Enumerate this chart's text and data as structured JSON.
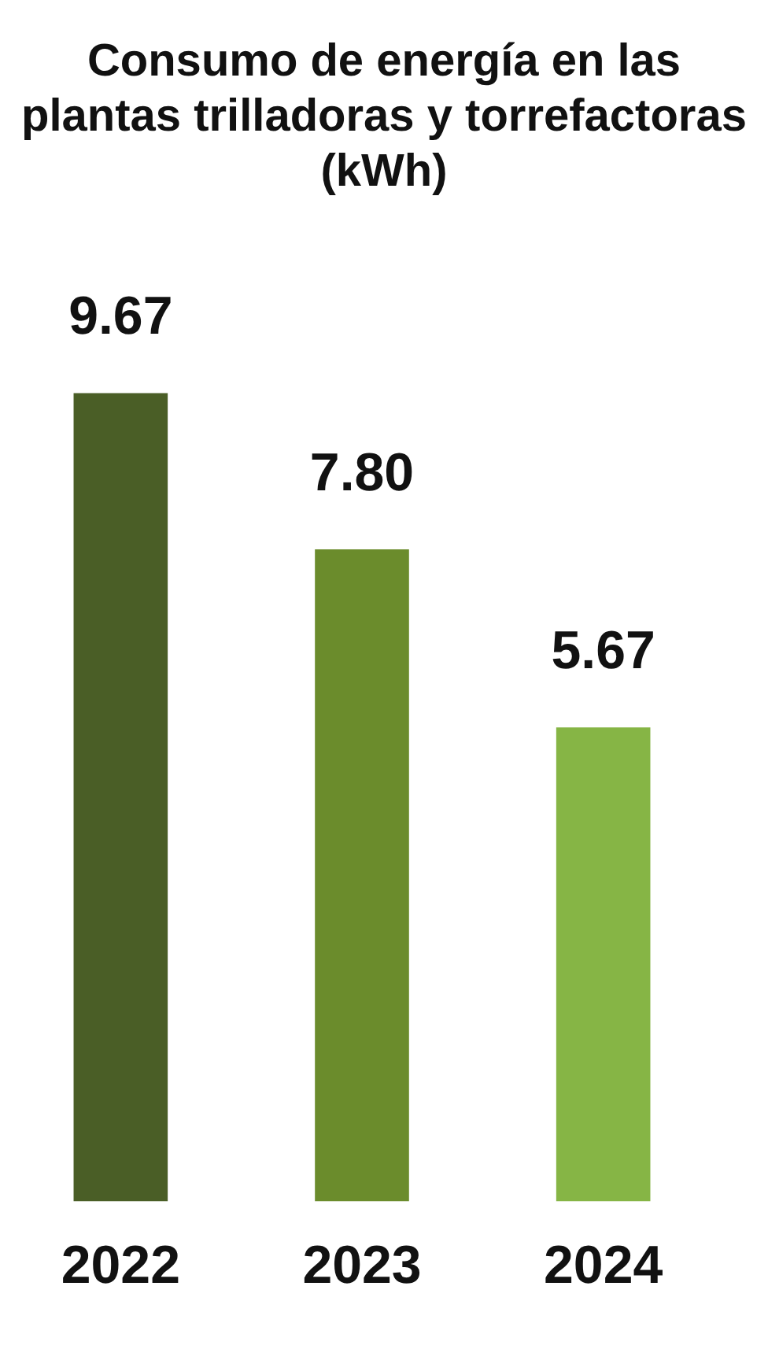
{
  "chart_data": {
    "type": "bar",
    "title": "Consumo de energía en las plantas trilladoras y torrefactoras (kWh)",
    "categories": [
      "2022",
      "2023",
      "2024"
    ],
    "values": [
      9.67,
      7.8,
      5.67
    ],
    "value_labels": [
      "9.67",
      "7.80",
      "5.67"
    ],
    "colors": [
      "#4a5e26",
      "#6b8c2c",
      "#86b545"
    ]
  }
}
